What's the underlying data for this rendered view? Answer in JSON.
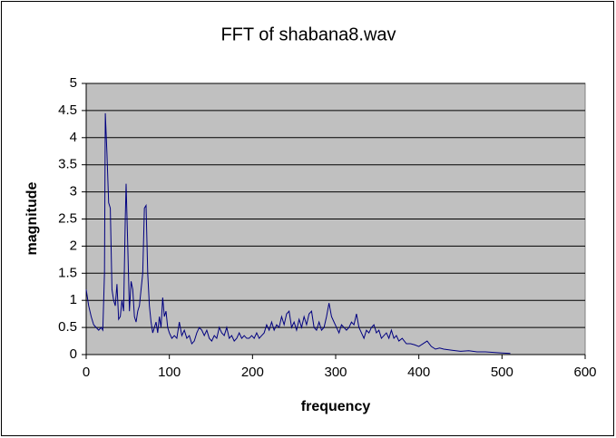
{
  "chart_data": {
    "type": "line",
    "title": "FFT of shabana8.wav",
    "x_label": "frequency",
    "y_label": "magnitude",
    "xlim": [
      0,
      600
    ],
    "xticks": [
      0,
      100,
      200,
      300,
      400,
      500,
      600
    ],
    "ylim": [
      0,
      5
    ],
    "yticks": [
      0,
      0.5,
      1,
      1.5,
      2,
      2.5,
      3,
      3.5,
      4,
      4.5,
      5
    ],
    "grid": true,
    "plot_background": "#c0c0c0",
    "series": [
      {
        "color": "#000080",
        "x": [
          0,
          3,
          6,
          9,
          12,
          15,
          18,
          20,
          22,
          23,
          25,
          27,
          29,
          31,
          33,
          35,
          37,
          39,
          41,
          43,
          45,
          47,
          48,
          50,
          52,
          54,
          56,
          58,
          60,
          62,
          64,
          66,
          68,
          70,
          72,
          74,
          76,
          78,
          80,
          82,
          84,
          86,
          88,
          90,
          92,
          94,
          96,
          98,
          100,
          103,
          106,
          109,
          112,
          115,
          118,
          121,
          124,
          127,
          130,
          133,
          136,
          139,
          142,
          145,
          148,
          151,
          154,
          157,
          160,
          163,
          166,
          169,
          172,
          175,
          178,
          181,
          184,
          187,
          190,
          193,
          196,
          199,
          202,
          205,
          208,
          211,
          214,
          217,
          220,
          223,
          226,
          229,
          232,
          235,
          238,
          241,
          244,
          247,
          250,
          253,
          256,
          259,
          262,
          265,
          268,
          271,
          274,
          277,
          280,
          283,
          286,
          289,
          292,
          295,
          298,
          301,
          304,
          307,
          310,
          313,
          316,
          319,
          322,
          325,
          328,
          331,
          334,
          337,
          340,
          343,
          346,
          349,
          352,
          355,
          358,
          361,
          364,
          367,
          370,
          373,
          376,
          380,
          385,
          390,
          395,
          400,
          405,
          410,
          415,
          420,
          425,
          430,
          440,
          450,
          460,
          470,
          480,
          490,
          500,
          510
        ],
        "values": [
          1.2,
          0.9,
          0.7,
          0.55,
          0.5,
          0.45,
          0.5,
          0.45,
          1.5,
          4.45,
          3.7,
          2.8,
          2.7,
          1.2,
          1.0,
          0.9,
          1.3,
          0.65,
          0.7,
          1.0,
          0.8,
          2.5,
          3.15,
          2.0,
          0.8,
          1.35,
          1.2,
          0.7,
          0.6,
          0.8,
          0.9,
          1.2,
          1.5,
          2.7,
          2.75,
          1.5,
          0.9,
          0.6,
          0.4,
          0.5,
          0.6,
          0.4,
          0.7,
          0.5,
          1.05,
          0.7,
          0.8,
          0.5,
          0.4,
          0.3,
          0.35,
          0.3,
          0.6,
          0.35,
          0.45,
          0.3,
          0.35,
          0.2,
          0.25,
          0.4,
          0.5,
          0.45,
          0.35,
          0.45,
          0.3,
          0.25,
          0.35,
          0.3,
          0.5,
          0.4,
          0.35,
          0.5,
          0.3,
          0.35,
          0.25,
          0.3,
          0.4,
          0.3,
          0.35,
          0.3,
          0.3,
          0.35,
          0.3,
          0.4,
          0.3,
          0.35,
          0.4,
          0.55,
          0.45,
          0.6,
          0.45,
          0.55,
          0.5,
          0.7,
          0.55,
          0.75,
          0.8,
          0.5,
          0.6,
          0.45,
          0.65,
          0.5,
          0.7,
          0.55,
          0.75,
          0.8,
          0.5,
          0.45,
          0.6,
          0.45,
          0.5,
          0.7,
          0.95,
          0.7,
          0.6,
          0.5,
          0.4,
          0.55,
          0.5,
          0.45,
          0.5,
          0.6,
          0.55,
          0.75,
          0.5,
          0.4,
          0.3,
          0.45,
          0.4,
          0.5,
          0.55,
          0.4,
          0.45,
          0.3,
          0.35,
          0.4,
          0.3,
          0.45,
          0.3,
          0.35,
          0.25,
          0.3,
          0.2,
          0.2,
          0.18,
          0.15,
          0.2,
          0.25,
          0.15,
          0.1,
          0.12,
          0.1,
          0.08,
          0.06,
          0.07,
          0.05,
          0.05,
          0.04,
          0.03,
          0.02
        ]
      }
    ]
  }
}
